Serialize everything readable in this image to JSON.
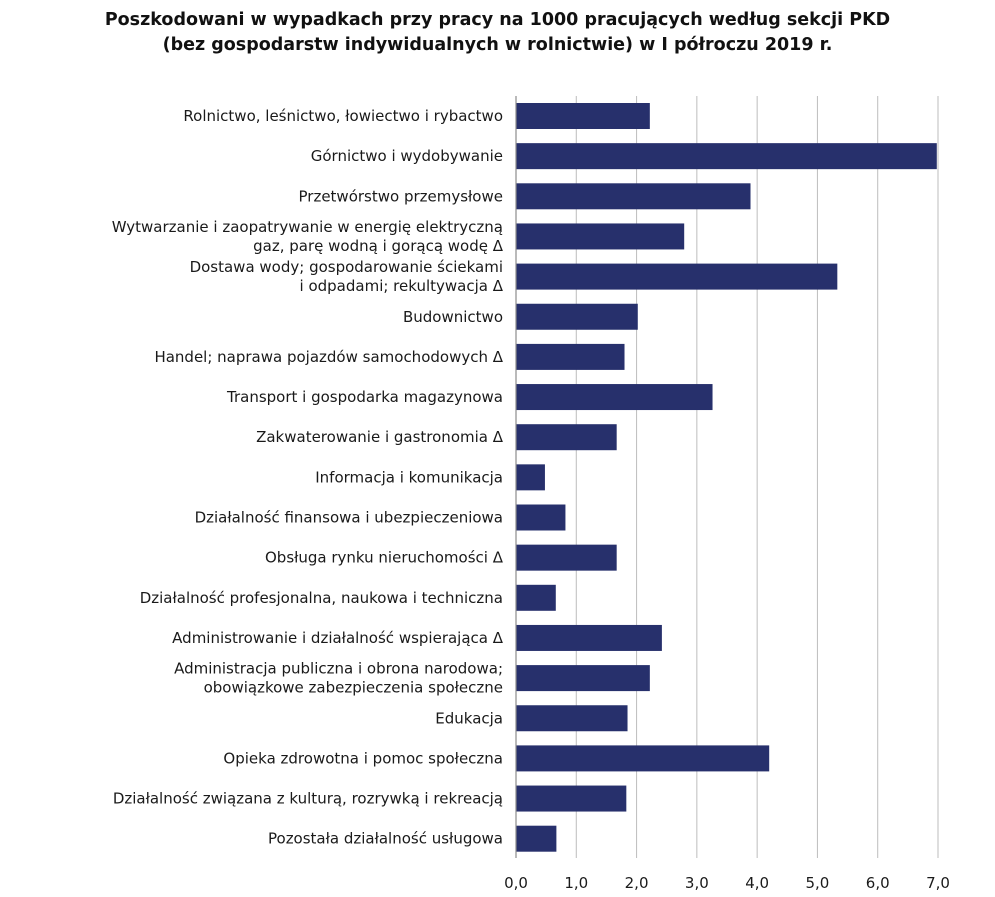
{
  "title": {
    "line1": "Poszkodowani w wypadkach przy pracy na 1000 pracujących według sekcji PKD",
    "line2": "(bez gospodarstw indywidualnych w rolnictwie) w I półroczu 2019 r."
  },
  "colors": {
    "bar": "#27306c",
    "grid": "#bdbdbd",
    "axis": "#8c8c8c"
  },
  "chart_data": {
    "type": "bar",
    "orientation": "horizontal",
    "categories": [
      [
        "Rolnictwo, leśnictwo, łowiectwo i rybactwo"
      ],
      [
        "Górnictwo i wydobywanie"
      ],
      [
        "Przetwórstwo przemysłowe"
      ],
      [
        "Wytwarzanie i zaopatrywanie w energię elektryczną",
        "gaz, parę wodną i gorącą wodę Δ"
      ],
      [
        "Dostawa wody; gospodarowanie ściekami",
        "i odpadami; rekultywacja Δ"
      ],
      [
        "Budownictwo"
      ],
      [
        "Handel; naprawa pojazdów samochodowych Δ"
      ],
      [
        "Transport i gospodarka magazynowa"
      ],
      [
        "Zakwaterowanie i gastronomia Δ"
      ],
      [
        "Informacja i komunikacja"
      ],
      [
        "Działalność finansowa i ubezpieczeniowa"
      ],
      [
        "Obsługa rynku nieruchomości Δ"
      ],
      [
        "Działalność profesjonalna, naukowa i techniczna"
      ],
      [
        "Administrowanie i działalność wspierająca Δ"
      ],
      [
        "Administracja publiczna i obrona narodowa;",
        "obowiązkowe zabezpieczenia społeczne"
      ],
      [
        "Edukacja"
      ],
      [
        "Opieka zdrowotna i pomoc społeczna"
      ],
      [
        "Działalność związana z kulturą, rozrywką i rekreacją"
      ],
      [
        "Pozostała działalność usługowa"
      ]
    ],
    "values": [
      2.22,
      6.98,
      3.89,
      2.79,
      5.33,
      2.02,
      1.8,
      3.26,
      1.67,
      0.48,
      0.82,
      1.67,
      0.66,
      2.42,
      2.22,
      1.85,
      4.2,
      1.83,
      0.67
    ],
    "xlim": [
      0,
      7
    ],
    "xticks": [
      "0,0",
      "1,0",
      "2,0",
      "3,0",
      "4,0",
      "5,0",
      "6,0",
      "7,0"
    ],
    "grid": true,
    "legend": "none"
  }
}
